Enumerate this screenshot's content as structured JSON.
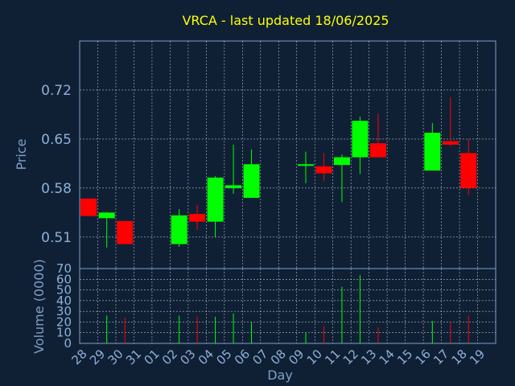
{
  "chart_data": [
    {
      "type": "candlestick",
      "title": "VRCA - last updated 18/06/2025",
      "ylabel": "Price",
      "xlabel": "Day",
      "ylim": [
        0.465,
        0.79
      ],
      "yticks": [
        0.51,
        0.58,
        0.65,
        0.72
      ],
      "ytick_labels": [
        "0.51",
        "0.58",
        "0.65",
        "0.72"
      ],
      "x_tick_labels": [
        "28",
        "29",
        "30",
        "31",
        "01",
        "02",
        "03",
        "04",
        "05",
        "06",
        "07",
        "08",
        "09",
        "10",
        "11",
        "12",
        "13",
        "14",
        "15",
        "16",
        "17",
        "18",
        "19"
      ],
      "grid": true,
      "candles": [
        {
          "day": "28",
          "open": 0.565,
          "high": 0.565,
          "low": 0.54,
          "close": 0.54
        },
        {
          "day": "29",
          "open": 0.537,
          "high": 0.546,
          "low": 0.495,
          "close": 0.545
        },
        {
          "day": "30",
          "open": 0.533,
          "high": 0.533,
          "low": 0.5,
          "close": 0.5
        },
        {
          "day": "02",
          "open": 0.5,
          "high": 0.55,
          "low": 0.496,
          "close": 0.541
        },
        {
          "day": "03",
          "open": 0.543,
          "high": 0.556,
          "low": 0.52,
          "close": 0.532
        },
        {
          "day": "04",
          "open": 0.532,
          "high": 0.597,
          "low": 0.51,
          "close": 0.595
        },
        {
          "day": "05",
          "open": 0.58,
          "high": 0.642,
          "low": 0.572,
          "close": 0.584
        },
        {
          "day": "06",
          "open": 0.566,
          "high": 0.635,
          "low": 0.566,
          "close": 0.614
        },
        {
          "day": "09",
          "open": 0.612,
          "high": 0.632,
          "low": 0.587,
          "close": 0.614
        },
        {
          "day": "10",
          "open": 0.611,
          "high": 0.63,
          "low": 0.59,
          "close": 0.601
        },
        {
          "day": "11",
          "open": 0.613,
          "high": 0.628,
          "low": 0.56,
          "close": 0.624
        },
        {
          "day": "12",
          "open": 0.624,
          "high": 0.682,
          "low": 0.6,
          "close": 0.676
        },
        {
          "day": "13",
          "open": 0.644,
          "high": 0.686,
          "low": 0.625,
          "close": 0.624
        },
        {
          "day": "16",
          "open": 0.605,
          "high": 0.673,
          "low": 0.605,
          "close": 0.659
        },
        {
          "day": "17",
          "open": 0.647,
          "high": 0.71,
          "low": 0.64,
          "close": 0.642
        },
        {
          "day": "18",
          "open": 0.63,
          "high": 0.65,
          "low": 0.57,
          "close": 0.58
        }
      ]
    },
    {
      "type": "bar",
      "ylabel": "Volume (0000)",
      "xlabel": "Day",
      "ylim": [
        0,
        70
      ],
      "yticks": [
        0,
        10,
        20,
        30,
        40,
        50,
        60,
        70
      ],
      "ytick_labels": [
        "0",
        "10",
        "20",
        "30",
        "40",
        "50",
        "60",
        "70"
      ],
      "categories": [
        "29",
        "30",
        "02",
        "03",
        "04",
        "05",
        "06",
        "09",
        "10",
        "11",
        "12",
        "13",
        "16",
        "17",
        "18"
      ],
      "values": [
        26,
        24,
        26,
        25,
        25,
        28,
        20,
        10,
        16,
        53,
        64,
        15,
        21,
        20,
        26
      ]
    }
  ],
  "colors": {
    "background": "#0f2035",
    "up": "#00ff00",
    "down": "#ff0000",
    "title": "#ffff00",
    "grid": "#ffffff",
    "axis": "#7f9fc8"
  }
}
